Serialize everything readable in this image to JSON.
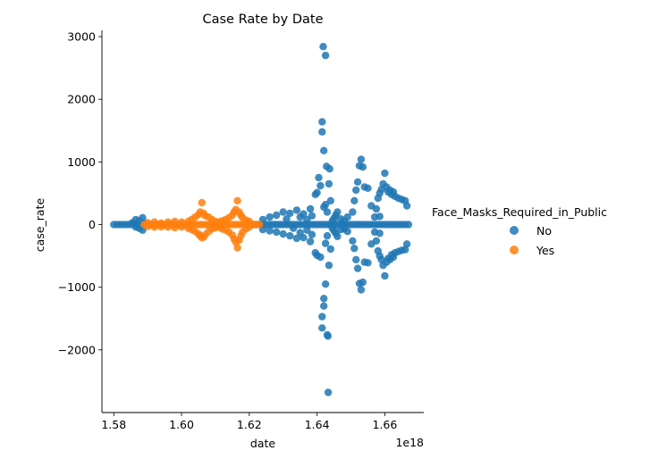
{
  "chart_data": {
    "type": "scatter",
    "title": "Case Rate by Date",
    "xlabel": "date",
    "ylabel": "case_rate",
    "x_offset_label": "1e18",
    "xlim": [
      1.5765,
      1.6715
    ],
    "ylim": [
      -3000,
      3100
    ],
    "x_ticks": [
      1.58,
      1.6,
      1.62,
      1.64,
      1.66
    ],
    "x_tick_labels": [
      "1.58",
      "1.60",
      "1.62",
      "1.64",
      "1.66"
    ],
    "y_ticks": [
      -2000,
      -1000,
      0,
      1000,
      2000,
      3000
    ],
    "y_tick_labels": [
      "−2000",
      "−1000",
      "0",
      "1000",
      "2000",
      "3000"
    ],
    "grid": false,
    "legend": {
      "title": "Face_Masks_Required_in_Public",
      "placement": "right-center",
      "entries": [
        {
          "label": "No",
          "color": "#1f77b4"
        },
        {
          "label": "Yes",
          "color": "#ff7f0e"
        }
      ]
    },
    "series": [
      {
        "name": "No",
        "color": "#1f77b4",
        "points": [
          [
            1.58,
            0
          ],
          [
            1.581,
            0
          ],
          [
            1.582,
            0
          ],
          [
            1.583,
            0
          ],
          [
            1.584,
            0
          ],
          [
            1.585,
            0
          ],
          [
            1.586,
            0
          ],
          [
            1.587,
            0
          ],
          [
            1.5875,
            60
          ],
          [
            1.5875,
            -60
          ],
          [
            1.5885,
            110
          ],
          [
            1.5885,
            -90
          ],
          [
            1.5865,
            80
          ],
          [
            1.5865,
            -40
          ],
          [
            1.5855,
            30
          ],
          [
            1.589,
            20
          ],
          [
            1.621,
            0
          ],
          [
            1.622,
            0
          ],
          [
            1.623,
            0
          ],
          [
            1.624,
            0
          ],
          [
            1.625,
            0
          ],
          [
            1.626,
            0
          ],
          [
            1.627,
            0
          ],
          [
            1.628,
            0
          ],
          [
            1.629,
            0
          ],
          [
            1.63,
            0
          ],
          [
            1.631,
            0
          ],
          [
            1.632,
            0
          ],
          [
            1.633,
            0
          ],
          [
            1.634,
            0
          ],
          [
            1.635,
            0
          ],
          [
            1.636,
            0
          ],
          [
            1.637,
            0
          ],
          [
            1.638,
            0
          ],
          [
            1.639,
            0
          ],
          [
            1.64,
            0
          ],
          [
            1.641,
            0
          ],
          [
            1.642,
            0
          ],
          [
            1.643,
            0
          ],
          [
            1.644,
            0
          ],
          [
            1.645,
            0
          ],
          [
            1.646,
            0
          ],
          [
            1.647,
            0
          ],
          [
            1.648,
            0
          ],
          [
            1.649,
            0
          ],
          [
            1.65,
            0
          ],
          [
            1.651,
            0
          ],
          [
            1.652,
            0
          ],
          [
            1.653,
            0
          ],
          [
            1.654,
            0
          ],
          [
            1.655,
            0
          ],
          [
            1.656,
            0
          ],
          [
            1.657,
            0
          ],
          [
            1.658,
            0
          ],
          [
            1.659,
            0
          ],
          [
            1.66,
            0
          ],
          [
            1.661,
            0
          ],
          [
            1.662,
            0
          ],
          [
            1.663,
            0
          ],
          [
            1.664,
            0
          ],
          [
            1.665,
            0
          ],
          [
            1.666,
            0
          ],
          [
            1.667,
            0
          ],
          [
            1.624,
            80
          ],
          [
            1.624,
            -80
          ],
          [
            1.626,
            120
          ],
          [
            1.626,
            -100
          ],
          [
            1.628,
            150
          ],
          [
            1.628,
            -120
          ],
          [
            1.63,
            200
          ],
          [
            1.63,
            -150
          ],
          [
            1.631,
            90
          ],
          [
            1.632,
            180
          ],
          [
            1.632,
            -180
          ],
          [
            1.633,
            -60
          ],
          [
            1.634,
            230
          ],
          [
            1.634,
            -220
          ],
          [
            1.635,
            120
          ],
          [
            1.635,
            -130
          ],
          [
            1.636,
            170
          ],
          [
            1.636,
            -210
          ],
          [
            1.637,
            80
          ],
          [
            1.637,
            -90
          ],
          [
            1.638,
            250
          ],
          [
            1.638,
            -270
          ],
          [
            1.6385,
            140
          ],
          [
            1.6385,
            -160
          ],
          [
            1.6395,
            480
          ],
          [
            1.6395,
            -450
          ],
          [
            1.64,
            510
          ],
          [
            1.64,
            -490
          ],
          [
            1.6405,
            750
          ],
          [
            1.641,
            620
          ],
          [
            1.641,
            -520
          ],
          [
            1.6415,
            1640
          ],
          [
            1.6415,
            1480
          ],
          [
            1.6415,
            -1470
          ],
          [
            1.6415,
            -1650
          ],
          [
            1.6418,
            2840
          ],
          [
            1.642,
            1180
          ],
          [
            1.642,
            -1180
          ],
          [
            1.642,
            -1300
          ],
          [
            1.6425,
            2700
          ],
          [
            1.6425,
            -950
          ],
          [
            1.6428,
            930
          ],
          [
            1.643,
            -1760
          ],
          [
            1.6432,
            -1780
          ],
          [
            1.6433,
            -2680
          ],
          [
            1.6435,
            650
          ],
          [
            1.6435,
            -650
          ],
          [
            1.6437,
            890
          ],
          [
            1.644,
            380
          ],
          [
            1.644,
            -390
          ],
          [
            1.6425,
            320
          ],
          [
            1.6425,
            -300
          ],
          [
            1.642,
            280
          ],
          [
            1.643,
            200
          ],
          [
            1.643,
            -180
          ],
          [
            1.6445,
            60
          ],
          [
            1.6445,
            -60
          ],
          [
            1.645,
            100
          ],
          [
            1.645,
            -100
          ],
          [
            1.6455,
            150
          ],
          [
            1.6455,
            -140
          ],
          [
            1.646,
            200
          ],
          [
            1.646,
            -190
          ],
          [
            1.647,
            90
          ],
          [
            1.647,
            -80
          ],
          [
            1.648,
            60
          ],
          [
            1.648,
            -70
          ],
          [
            1.649,
            120
          ],
          [
            1.649,
            -110
          ],
          [
            1.6505,
            200
          ],
          [
            1.6505,
            -260
          ],
          [
            1.651,
            380
          ],
          [
            1.651,
            -380
          ],
          [
            1.6515,
            550
          ],
          [
            1.6515,
            -560
          ],
          [
            1.652,
            680
          ],
          [
            1.652,
            -700
          ],
          [
            1.6525,
            940
          ],
          [
            1.6525,
            -940
          ],
          [
            1.653,
            1040
          ],
          [
            1.653,
            -1040
          ],
          [
            1.6535,
            920
          ],
          [
            1.6535,
            -920
          ],
          [
            1.654,
            600
          ],
          [
            1.654,
            -600
          ],
          [
            1.655,
            580
          ],
          [
            1.655,
            -610
          ],
          [
            1.656,
            300
          ],
          [
            1.656,
            -310
          ],
          [
            1.657,
            120
          ],
          [
            1.657,
            -120
          ],
          [
            1.658,
            420
          ],
          [
            1.658,
            -420
          ],
          [
            1.6585,
            500
          ],
          [
            1.6585,
            -500
          ],
          [
            1.659,
            560
          ],
          [
            1.659,
            -560
          ],
          [
            1.6595,
            650
          ],
          [
            1.6595,
            -650
          ],
          [
            1.66,
            820
          ],
          [
            1.66,
            -820
          ],
          [
            1.6605,
            600
          ],
          [
            1.6605,
            -600
          ],
          [
            1.661,
            520
          ],
          [
            1.661,
            -540
          ],
          [
            1.6615,
            550
          ],
          [
            1.6615,
            -560
          ],
          [
            1.662,
            480
          ],
          [
            1.662,
            -480
          ],
          [
            1.6625,
            520
          ],
          [
            1.6625,
            -520
          ],
          [
            1.663,
            450
          ],
          [
            1.663,
            -450
          ],
          [
            1.664,
            420
          ],
          [
            1.664,
            -430
          ],
          [
            1.665,
            400
          ],
          [
            1.665,
            -410
          ],
          [
            1.666,
            380
          ],
          [
            1.666,
            -400
          ],
          [
            1.6665,
            300
          ],
          [
            1.6665,
            -310
          ],
          [
            1.6575,
            250
          ],
          [
            1.6575,
            -260
          ],
          [
            1.6585,
            130
          ],
          [
            1.6585,
            -140
          ]
        ]
      },
      {
        "name": "Yes",
        "color": "#ff7f0e",
        "points": [
          [
            1.589,
            0
          ],
          [
            1.59,
            0
          ],
          [
            1.591,
            0
          ],
          [
            1.592,
            0
          ],
          [
            1.593,
            0
          ],
          [
            1.594,
            0
          ],
          [
            1.595,
            0
          ],
          [
            1.596,
            0
          ],
          [
            1.597,
            0
          ],
          [
            1.598,
            0
          ],
          [
            1.599,
            0
          ],
          [
            1.6,
            0
          ],
          [
            1.601,
            0
          ],
          [
            1.602,
            0
          ],
          [
            1.603,
            0
          ],
          [
            1.604,
            0
          ],
          [
            1.605,
            0
          ],
          [
            1.606,
            0
          ],
          [
            1.607,
            0
          ],
          [
            1.608,
            0
          ],
          [
            1.609,
            0
          ],
          [
            1.61,
            0
          ],
          [
            1.611,
            0
          ],
          [
            1.612,
            0
          ],
          [
            1.613,
            0
          ],
          [
            1.614,
            0
          ],
          [
            1.615,
            0
          ],
          [
            1.616,
            0
          ],
          [
            1.617,
            0
          ],
          [
            1.618,
            0
          ],
          [
            1.619,
            0
          ],
          [
            1.62,
            0
          ],
          [
            1.621,
            0
          ],
          [
            1.622,
            0
          ],
          [
            1.623,
            0
          ],
          [
            1.59,
            30
          ],
          [
            1.59,
            -30
          ],
          [
            1.592,
            40
          ],
          [
            1.592,
            -40
          ],
          [
            1.594,
            25
          ],
          [
            1.594,
            -35
          ],
          [
            1.596,
            40
          ],
          [
            1.596,
            -40
          ],
          [
            1.598,
            50
          ],
          [
            1.598,
            -50
          ],
          [
            1.6,
            40
          ],
          [
            1.6,
            -40
          ],
          [
            1.602,
            50
          ],
          [
            1.602,
            -60
          ],
          [
            1.603,
            80
          ],
          [
            1.603,
            -80
          ],
          [
            1.604,
            120
          ],
          [
            1.604,
            -110
          ],
          [
            1.605,
            160
          ],
          [
            1.605,
            -150
          ],
          [
            1.6055,
            200
          ],
          [
            1.6055,
            -180
          ],
          [
            1.606,
            350
          ],
          [
            1.606,
            -210
          ],
          [
            1.6065,
            180
          ],
          [
            1.6065,
            -200
          ],
          [
            1.607,
            140
          ],
          [
            1.607,
            -160
          ],
          [
            1.608,
            120
          ],
          [
            1.608,
            -110
          ],
          [
            1.609,
            80
          ],
          [
            1.609,
            -70
          ],
          [
            1.61,
            50
          ],
          [
            1.61,
            -50
          ],
          [
            1.611,
            40
          ],
          [
            1.611,
            -40
          ],
          [
            1.612,
            60
          ],
          [
            1.612,
            -70
          ],
          [
            1.613,
            80
          ],
          [
            1.613,
            -90
          ],
          [
            1.614,
            110
          ],
          [
            1.614,
            -120
          ],
          [
            1.615,
            150
          ],
          [
            1.615,
            -170
          ],
          [
            1.6155,
            200
          ],
          [
            1.6155,
            -230
          ],
          [
            1.616,
            240
          ],
          [
            1.616,
            -280
          ],
          [
            1.6165,
            380
          ],
          [
            1.6165,
            -370
          ],
          [
            1.617,
            200
          ],
          [
            1.617,
            -250
          ],
          [
            1.6175,
            150
          ],
          [
            1.6175,
            -180
          ],
          [
            1.618,
            110
          ],
          [
            1.618,
            -120
          ],
          [
            1.619,
            70
          ],
          [
            1.619,
            -70
          ],
          [
            1.62,
            50
          ],
          [
            1.62,
            -40
          ]
        ]
      }
    ]
  }
}
